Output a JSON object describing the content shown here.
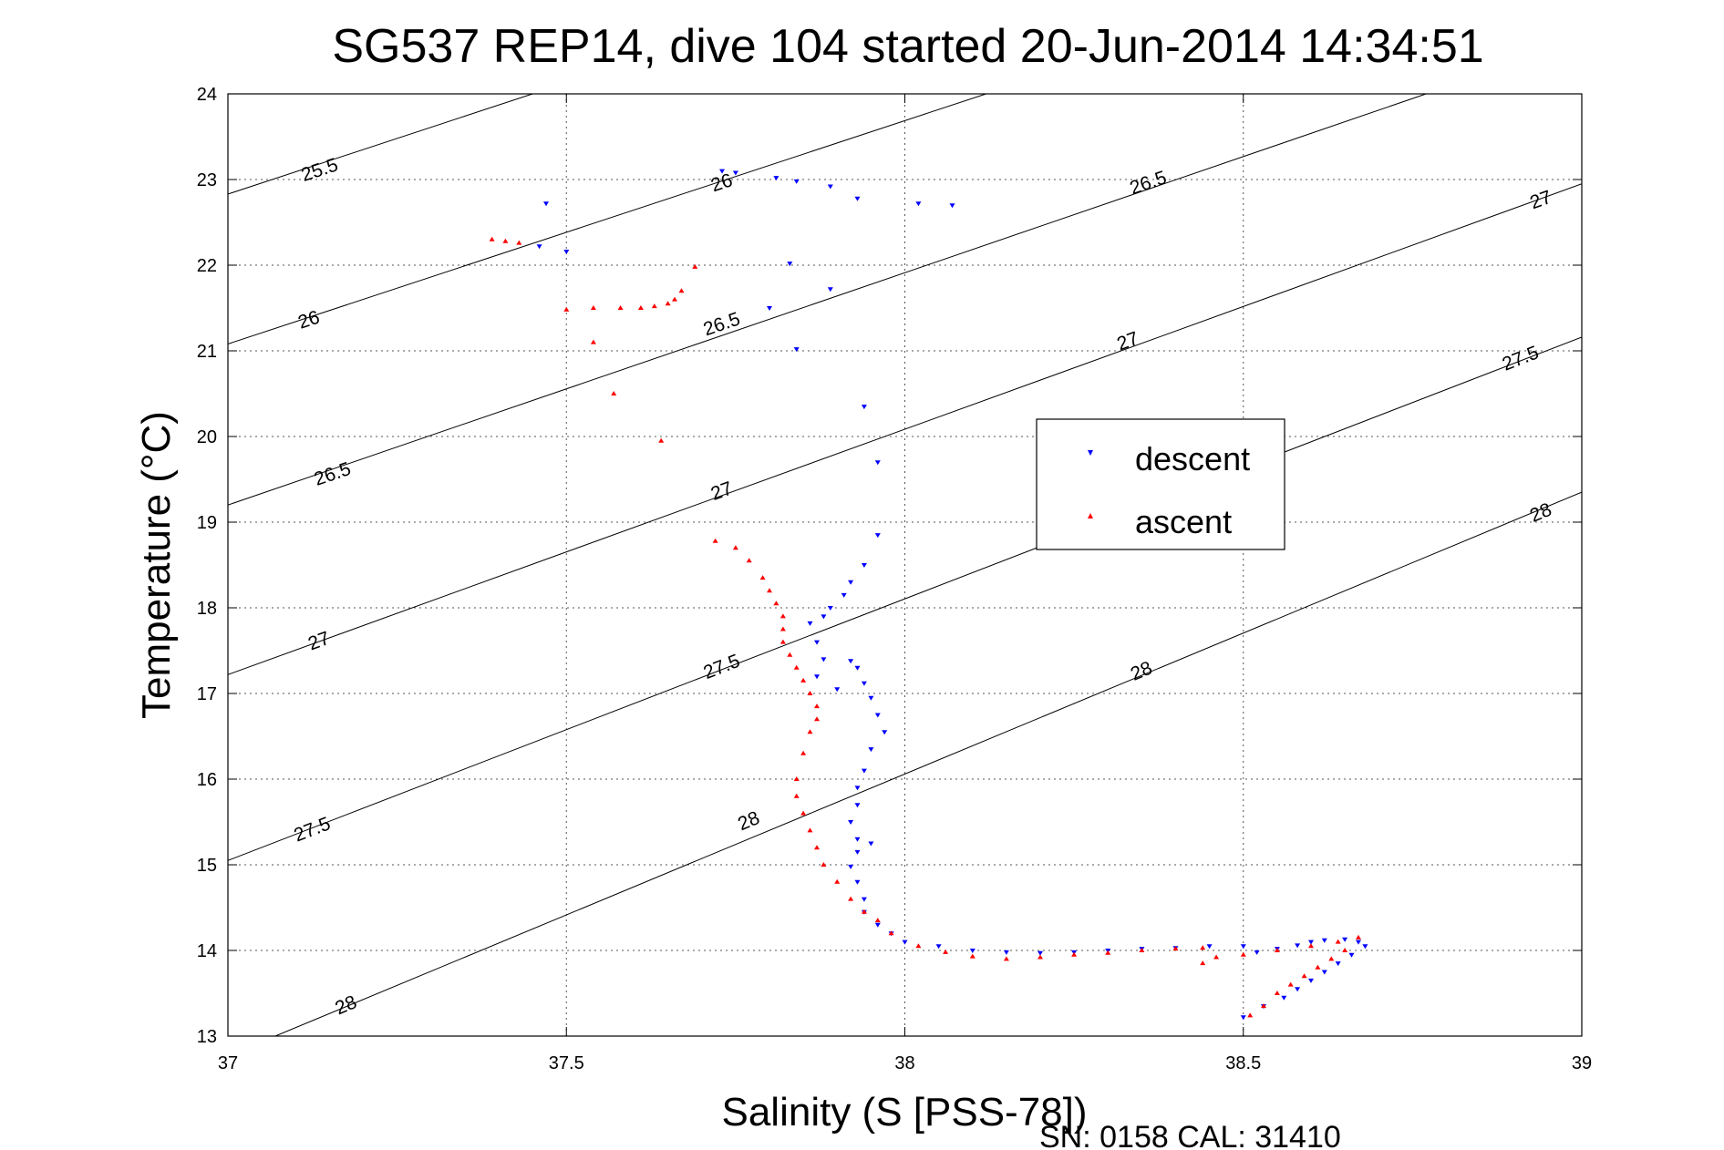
{
  "chart_data": {
    "type": "scatter",
    "title": "SG537 REP14, dive 104 started 20-Jun-2014 14:34:51",
    "xlabel": "Salinity (S [PSS-78])",
    "ylabel": "Temperature (°C)",
    "footer": "SN: 0158  CAL: 31410",
    "xlim": [
      37,
      39
    ],
    "ylim": [
      13,
      24
    ],
    "xticks": [
      37,
      37.5,
      38,
      38.5,
      39
    ],
    "xtick_labels": [
      "37",
      "37.5",
      "38",
      "38.5",
      "39"
    ],
    "yticks": [
      13,
      14,
      15,
      16,
      17,
      18,
      19,
      20,
      21,
      22,
      23,
      24
    ],
    "ytick_labels": [
      "13",
      "14",
      "15",
      "16",
      "17",
      "18",
      "19",
      "20",
      "21",
      "22",
      "23",
      "24"
    ],
    "grid": true,
    "legend_position": "right",
    "density_contours": [
      {
        "level": "25.5",
        "points": [
          [
            37,
            22.83
          ],
          [
            37.45,
            24
          ]
        ],
        "labels": [
          [
            37.136,
            23.1
          ]
        ]
      },
      {
        "level": "26",
        "points": [
          [
            37,
            21.08
          ],
          [
            38.12,
            24
          ]
        ],
        "labels": [
          [
            37.12,
            21.35
          ],
          [
            37.73,
            22.95
          ]
        ]
      },
      {
        "level": "26.5",
        "points": [
          [
            37,
            19.2
          ],
          [
            38.77,
            24
          ]
        ],
        "labels": [
          [
            37.155,
            19.55
          ],
          [
            37.73,
            21.3
          ],
          [
            38.36,
            22.95
          ]
        ]
      },
      {
        "level": "27",
        "points": [
          [
            37,
            17.22
          ],
          [
            39,
            22.95
          ]
        ],
        "labels": [
          [
            37.135,
            17.6
          ],
          [
            37.73,
            19.35
          ],
          [
            38.33,
            21.1
          ],
          [
            38.94,
            22.75
          ]
        ]
      },
      {
        "level": "27.5",
        "points": [
          [
            37,
            15.05
          ],
          [
            39,
            21.16
          ]
        ],
        "labels": [
          [
            37.125,
            15.4
          ],
          [
            37.73,
            17.3
          ],
          [
            38.91,
            20.9
          ]
        ]
      },
      {
        "level": "28",
        "points": [
          [
            37.07,
            13
          ],
          [
            39,
            19.35
          ]
        ],
        "labels": [
          [
            37.175,
            13.35
          ],
          [
            37.77,
            15.5
          ],
          [
            38.35,
            17.25
          ],
          [
            38.94,
            19.1
          ]
        ]
      }
    ],
    "series": [
      {
        "name": "descent",
        "color": "#0000ff",
        "marker": "triangle-down",
        "points": [
          [
            37.47,
            22.72
          ],
          [
            37.46,
            22.22
          ],
          [
            37.5,
            22.16
          ],
          [
            37.73,
            23.1
          ],
          [
            37.75,
            23.08
          ],
          [
            37.81,
            23.02
          ],
          [
            37.84,
            22.98
          ],
          [
            37.89,
            22.92
          ],
          [
            37.93,
            22.78
          ],
          [
            38.02,
            22.72
          ],
          [
            38.07,
            22.7
          ],
          [
            37.83,
            22.02
          ],
          [
            37.89,
            21.72
          ],
          [
            37.8,
            21.5
          ],
          [
            37.84,
            21.02
          ],
          [
            37.94,
            20.35
          ],
          [
            37.96,
            19.7
          ],
          [
            37.96,
            18.85
          ],
          [
            37.94,
            18.5
          ],
          [
            37.92,
            18.3
          ],
          [
            37.91,
            18.15
          ],
          [
            37.89,
            18.0
          ],
          [
            37.88,
            17.9
          ],
          [
            37.86,
            17.82
          ],
          [
            37.87,
            17.6
          ],
          [
            37.88,
            17.4
          ],
          [
            37.87,
            17.2
          ],
          [
            37.9,
            17.05
          ],
          [
            37.92,
            17.38
          ],
          [
            37.93,
            17.3
          ],
          [
            37.94,
            17.12
          ],
          [
            37.95,
            16.95
          ],
          [
            37.96,
            16.75
          ],
          [
            37.97,
            16.55
          ],
          [
            37.95,
            16.35
          ],
          [
            37.94,
            16.1
          ],
          [
            37.93,
            15.9
          ],
          [
            37.93,
            15.7
          ],
          [
            37.92,
            15.5
          ],
          [
            37.93,
            15.3
          ],
          [
            37.93,
            15.15
          ],
          [
            37.95,
            15.25
          ],
          [
            37.92,
            14.98
          ],
          [
            37.93,
            14.8
          ],
          [
            37.94,
            14.6
          ],
          [
            37.94,
            14.45
          ],
          [
            37.96,
            14.3
          ],
          [
            37.98,
            14.2
          ],
          [
            38.0,
            14.1
          ],
          [
            38.05,
            14.05
          ],
          [
            38.1,
            14.0
          ],
          [
            38.15,
            13.98
          ],
          [
            38.2,
            13.97
          ],
          [
            38.25,
            13.98
          ],
          [
            38.3,
            14.0
          ],
          [
            38.35,
            14.02
          ],
          [
            38.4,
            14.03
          ],
          [
            38.45,
            14.05
          ],
          [
            38.5,
            14.05
          ],
          [
            38.52,
            13.98
          ],
          [
            38.55,
            14.02
          ],
          [
            38.58,
            14.06
          ],
          [
            38.6,
            14.1
          ],
          [
            38.62,
            14.12
          ],
          [
            38.65,
            14.13
          ],
          [
            38.67,
            14.1
          ],
          [
            38.68,
            14.05
          ],
          [
            38.66,
            13.95
          ],
          [
            38.64,
            13.85
          ],
          [
            38.62,
            13.75
          ],
          [
            38.6,
            13.65
          ],
          [
            38.58,
            13.55
          ],
          [
            38.56,
            13.45
          ],
          [
            38.53,
            13.35
          ],
          [
            38.5,
            13.22
          ]
        ]
      },
      {
        "name": "ascent",
        "color": "#ff0000",
        "marker": "triangle-up",
        "points": [
          [
            37.39,
            22.3
          ],
          [
            37.41,
            22.28
          ],
          [
            37.43,
            22.26
          ],
          [
            37.5,
            21.48
          ],
          [
            37.54,
            21.5
          ],
          [
            37.58,
            21.5
          ],
          [
            37.61,
            21.5
          ],
          [
            37.63,
            21.52
          ],
          [
            37.65,
            21.55
          ],
          [
            37.66,
            21.6
          ],
          [
            37.67,
            21.7
          ],
          [
            37.69,
            21.98
          ],
          [
            37.54,
            21.1
          ],
          [
            37.57,
            20.5
          ],
          [
            37.64,
            19.95
          ],
          [
            37.72,
            18.78
          ],
          [
            37.75,
            18.7
          ],
          [
            37.77,
            18.55
          ],
          [
            37.79,
            18.35
          ],
          [
            37.8,
            18.2
          ],
          [
            37.81,
            18.05
          ],
          [
            37.82,
            17.9
          ],
          [
            37.82,
            17.75
          ],
          [
            37.82,
            17.6
          ],
          [
            37.83,
            17.45
          ],
          [
            37.84,
            17.3
          ],
          [
            37.85,
            17.15
          ],
          [
            37.86,
            17.0
          ],
          [
            37.87,
            16.85
          ],
          [
            37.87,
            16.7
          ],
          [
            37.86,
            16.55
          ],
          [
            37.85,
            16.3
          ],
          [
            37.84,
            16.0
          ],
          [
            37.84,
            15.8
          ],
          [
            37.85,
            15.6
          ],
          [
            37.86,
            15.4
          ],
          [
            37.87,
            15.2
          ],
          [
            37.88,
            15.0
          ],
          [
            37.9,
            14.8
          ],
          [
            37.92,
            14.6
          ],
          [
            37.94,
            14.45
          ],
          [
            37.96,
            14.35
          ],
          [
            37.98,
            14.2
          ],
          [
            38.02,
            14.05
          ],
          [
            38.06,
            13.98
          ],
          [
            38.1,
            13.93
          ],
          [
            38.15,
            13.9
          ],
          [
            38.2,
            13.92
          ],
          [
            38.25,
            13.95
          ],
          [
            38.3,
            13.97
          ],
          [
            38.35,
            14.0
          ],
          [
            38.4,
            14.02
          ],
          [
            38.44,
            14.03
          ],
          [
            38.44,
            13.85
          ],
          [
            38.46,
            13.92
          ],
          [
            38.5,
            13.95
          ],
          [
            38.55,
            14.0
          ],
          [
            38.6,
            14.05
          ],
          [
            38.64,
            14.1
          ],
          [
            38.67,
            14.15
          ],
          [
            38.65,
            14.0
          ],
          [
            38.63,
            13.9
          ],
          [
            38.61,
            13.8
          ],
          [
            38.59,
            13.7
          ],
          [
            38.57,
            13.6
          ],
          [
            38.55,
            13.5
          ],
          [
            38.53,
            13.35
          ],
          [
            38.51,
            13.24
          ]
        ]
      }
    ]
  }
}
